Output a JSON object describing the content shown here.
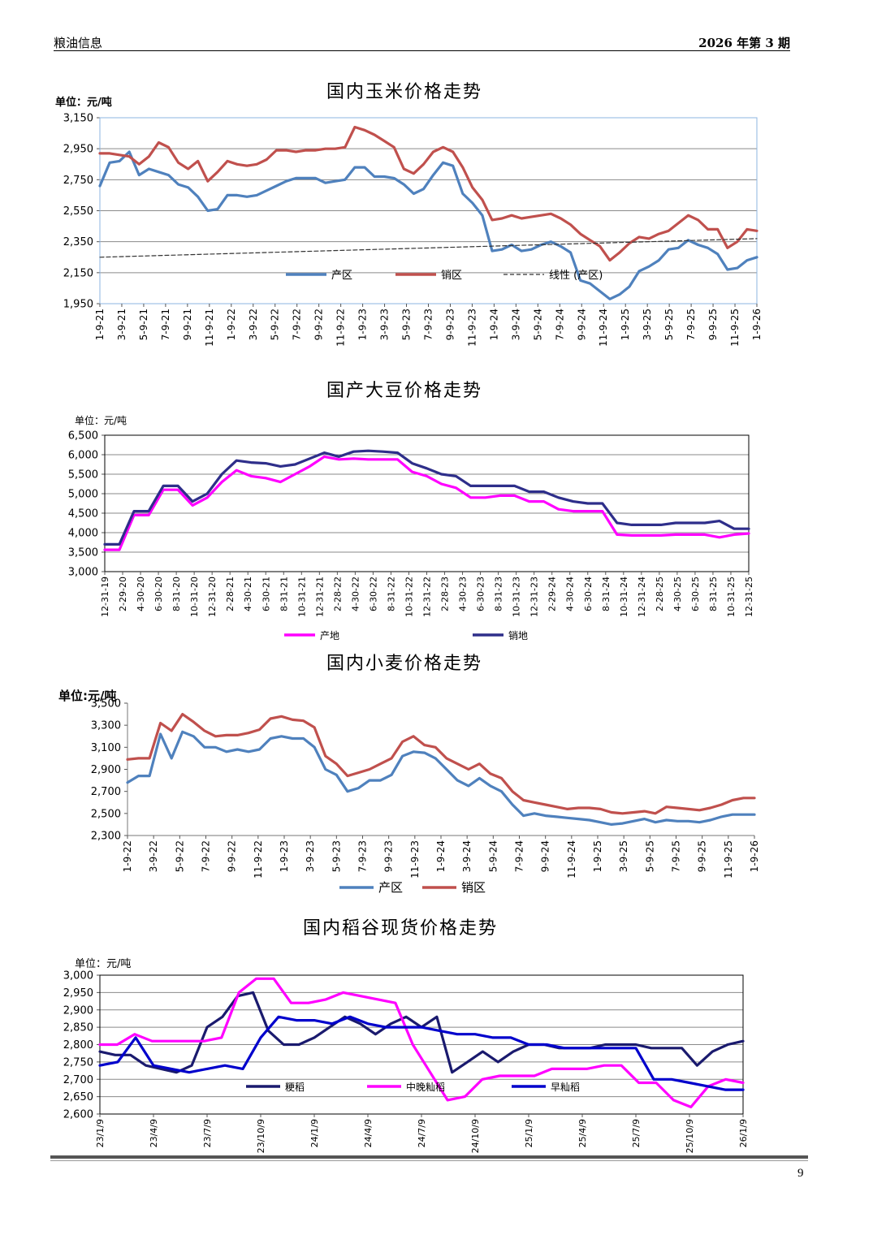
{
  "header": {
    "left": "粮油信息",
    "right": "2026 年第 3 期"
  },
  "footer": {
    "page_number": "9"
  },
  "chart_data": [
    {
      "type": "line",
      "title": "国内玉米价格走势",
      "unit_label": "单位：元/吨",
      "ylim": [
        1950,
        3150
      ],
      "yticks": [
        "3,150",
        "2,950",
        "2,750",
        "2,550",
        "2,350",
        "2,150",
        "1,950"
      ],
      "ytick_values": [
        3150,
        2950,
        2750,
        2550,
        2350,
        2150,
        1950
      ],
      "xticks": [
        "1-9-21",
        "3-9-21",
        "5-9-21",
        "7-9-21",
        "9-9-21",
        "11-9-21",
        "1-9-22",
        "3-9-22",
        "5-9-22",
        "7-9-22",
        "9-9-22",
        "11-9-22",
        "1-9-23",
        "3-9-23",
        "5-9-23",
        "7-9-23",
        "9-9-23",
        "11-9-23",
        "1-9-24",
        "3-9-24",
        "5-9-24",
        "7-9-24",
        "9-9-24",
        "11-9-24",
        "1-9-25",
        "3-9-25",
        "5-9-25",
        "7-9-25",
        "9-9-25",
        "11-9-25",
        "1-9-26"
      ],
      "grid": true,
      "legend_position": "bottom-inside",
      "series": [
        {
          "name": "产区",
          "color": "#4f81bd",
          "dash": false,
          "values": [
            2710,
            2860,
            2870,
            2930,
            2780,
            2820,
            2800,
            2780,
            2720,
            2700,
            2640,
            2550,
            2560,
            2650,
            2650,
            2640,
            2650,
            2680,
            2710,
            2740,
            2760,
            2760,
            2760,
            2730,
            2740,
            2750,
            2830,
            2830,
            2770,
            2770,
            2760,
            2720,
            2660,
            2690,
            2780,
            2860,
            2840,
            2660,
            2600,
            2520,
            2290,
            2300,
            2330,
            2290,
            2300,
            2330,
            2350,
            2320,
            2280,
            2100,
            2080,
            2030,
            1980,
            2010,
            2060,
            2160,
            2190,
            2230,
            2300,
            2310,
            2360,
            2330,
            2310,
            2270,
            2170,
            2180,
            2230,
            2250
          ]
        },
        {
          "name": "销区",
          "color": "#c0504d",
          "dash": false,
          "values": [
            2920,
            2920,
            2910,
            2900,
            2850,
            2900,
            2990,
            2960,
            2860,
            2820,
            2870,
            2740,
            2800,
            2870,
            2850,
            2840,
            2850,
            2880,
            2940,
            2940,
            2930,
            2940,
            2940,
            2950,
            2950,
            2960,
            3090,
            3070,
            3040,
            3000,
            2960,
            2820,
            2790,
            2850,
            2930,
            2960,
            2930,
            2830,
            2700,
            2620,
            2490,
            2500,
            2520,
            2500,
            2510,
            2520,
            2530,
            2500,
            2460,
            2400,
            2360,
            2320,
            2230,
            2280,
            2340,
            2380,
            2370,
            2400,
            2420,
            2470,
            2520,
            2490,
            2430,
            2430,
            2310,
            2350,
            2430,
            2420
          ]
        },
        {
          "name": "线性 (产区)",
          "color": "#333333",
          "dash": true,
          "values": [
            2250,
            2370
          ]
        }
      ]
    },
    {
      "type": "line",
      "title": "国产大豆价格走势",
      "unit_label": "单位：元/吨",
      "ylim": [
        3000,
        6500
      ],
      "yticks": [
        "6,500",
        "6,000",
        "5,500",
        "5,000",
        "4,500",
        "4,000",
        "3,500",
        "3,000"
      ],
      "ytick_values": [
        6500,
        6000,
        5500,
        5000,
        4500,
        4000,
        3500,
        3000
      ],
      "xticks": [
        "12-31-19",
        "2-29-20",
        "4-30-20",
        "6-30-20",
        "8-31-20",
        "10-31-20",
        "12-31-20",
        "2-28-21",
        "4-30-21",
        "6-30-21",
        "8-31-21",
        "10-31-21",
        "12-31-21",
        "2-28-22",
        "4-30-22",
        "6-30-22",
        "8-31-22",
        "10-31-22",
        "12-31-22",
        "2-28-23",
        "4-30-23",
        "6-30-23",
        "8-31-23",
        "10-31-23",
        "12-31-23",
        "2-29-24",
        "4-30-24",
        "6-30-24",
        "8-31-24",
        "10-31-24",
        "12-31-24",
        "2-28-25",
        "4-30-25",
        "6-30-25",
        "8-31-25",
        "10-31-25",
        "12-31-25"
      ],
      "grid": true,
      "legend_position": "bottom",
      "series": [
        {
          "name": "产地",
          "color": "#ff00ff",
          "dash": false,
          "values": [
            3560,
            3560,
            4450,
            4450,
            5100,
            5100,
            4700,
            4900,
            5300,
            5600,
            5450,
            5400,
            5300,
            5500,
            5700,
            5950,
            5880,
            5900,
            5880,
            5880,
            5880,
            5560,
            5450,
            5250,
            5150,
            4900,
            4900,
            4950,
            4950,
            4800,
            4800,
            4600,
            4550,
            4550,
            4550,
            3950,
            3930,
            3930,
            3930,
            3950,
            3950,
            3950,
            3880,
            3950,
            3980
          ]
        },
        {
          "name": "销地",
          "color": "#2e2e8a",
          "dash": false,
          "values": [
            3700,
            3700,
            4550,
            4550,
            5200,
            5200,
            4800,
            5000,
            5500,
            5850,
            5800,
            5780,
            5700,
            5750,
            5900,
            6050,
            5950,
            6080,
            6100,
            6080,
            6050,
            5780,
            5650,
            5500,
            5450,
            5200,
            5200,
            5200,
            5200,
            5050,
            5050,
            4900,
            4800,
            4750,
            4750,
            4250,
            4200,
            4200,
            4200,
            4250,
            4250,
            4250,
            4300,
            4100,
            4100
          ]
        }
      ]
    },
    {
      "type": "line",
      "title": "国内小麦价格走势",
      "unit_label": "单位:元/吨",
      "ylim": [
        2300,
        3500
      ],
      "yticks": [
        "3,500",
        "3,300",
        "3,100",
        "2,900",
        "2,700",
        "2,500",
        "2,300"
      ],
      "ytick_values": [
        3500,
        3300,
        3100,
        2900,
        2700,
        2500,
        2300
      ],
      "xticks": [
        "1-9-22",
        "3-9-22",
        "5-9-22",
        "7-9-22",
        "9-9-22",
        "11-9-22",
        "1-9-23",
        "3-9-23",
        "5-9-23",
        "7-9-23",
        "9-9-23",
        "11-9-23",
        "1-9-24",
        "3-9-24",
        "5-9-24",
        "7-9-24",
        "9-9-24",
        "11-9-24",
        "1-9-25",
        "3-9-25",
        "5-9-25",
        "7-9-25",
        "9-9-25",
        "11-9-25",
        "1-9-26"
      ],
      "grid": false,
      "legend_position": "bottom",
      "series": [
        {
          "name": "产区",
          "color": "#4f81bd",
          "dash": false,
          "values": [
            2780,
            2840,
            2840,
            3220,
            3000,
            3240,
            3200,
            3100,
            3100,
            3060,
            3080,
            3060,
            3080,
            3180,
            3200,
            3180,
            3180,
            3100,
            2900,
            2850,
            2700,
            2730,
            2800,
            2800,
            2850,
            3020,
            3060,
            3050,
            3000,
            2900,
            2800,
            2750,
            2820,
            2750,
            2700,
            2580,
            2480,
            2500,
            2480,
            2470,
            2460,
            2450,
            2440,
            2420,
            2400,
            2410,
            2430,
            2450,
            2420,
            2440,
            2430,
            2430,
            2420,
            2440,
            2470,
            2490,
            2490,
            2490
          ]
        },
        {
          "name": "销区",
          "color": "#c0504d",
          "dash": false,
          "values": [
            2990,
            3000,
            3000,
            3320,
            3250,
            3400,
            3330,
            3250,
            3200,
            3210,
            3210,
            3230,
            3260,
            3360,
            3380,
            3350,
            3340,
            3280,
            3020,
            2950,
            2840,
            2870,
            2900,
            2950,
            3000,
            3150,
            3200,
            3120,
            3100,
            3000,
            2950,
            2900,
            2950,
            2860,
            2820,
            2700,
            2620,
            2600,
            2580,
            2560,
            2540,
            2550,
            2550,
            2540,
            2510,
            2500,
            2510,
            2520,
            2500,
            2560,
            2550,
            2540,
            2530,
            2550,
            2580,
            2620,
            2640,
            2640
          ]
        }
      ]
    },
    {
      "type": "line",
      "title": "国内稻谷现货价格走势",
      "unit_label": "单位：元/吨",
      "ylim": [
        2600,
        3000
      ],
      "yticks": [
        "3,000",
        "2,950",
        "2,900",
        "2,850",
        "2,800",
        "2,750",
        "2,700",
        "2,650",
        "2,600"
      ],
      "ytick_values": [
        3000,
        2950,
        2900,
        2850,
        2800,
        2750,
        2700,
        2650,
        2600
      ],
      "xticks": [
        "23/1/9",
        "23/4/9",
        "23/7/9",
        "23/10/9",
        "24/1/9",
        "24/4/9",
        "24/7/9",
        "24/10/9",
        "25/1/9",
        "25/4/9",
        "25/7/9",
        "25/10/9",
        "26/1/9"
      ],
      "grid": true,
      "legend_position": "bottom-inside",
      "series": [
        {
          "name": "粳稻",
          "color": "#1a1a6e",
          "dash": false,
          "values": [
            2780,
            2770,
            2770,
            2740,
            2730,
            2720,
            2740,
            2850,
            2880,
            2940,
            2950,
            2840,
            2800,
            2800,
            2820,
            2850,
            2880,
            2860,
            2830,
            2860,
            2880,
            2850,
            2880,
            2720,
            2750,
            2780,
            2750,
            2780,
            2800,
            2800,
            2790,
            2790,
            2790,
            2800,
            2800,
            2800,
            2790,
            2790,
            2790,
            2740,
            2780,
            2800,
            2810
          ]
        },
        {
          "name": "中晚籼稻",
          "color": "#ff00ff",
          "dash": false,
          "values": [
            2800,
            2800,
            2830,
            2810,
            2810,
            2810,
            2810,
            2820,
            2950,
            2990,
            2990,
            2920,
            2920,
            2930,
            2950,
            2940,
            2930,
            2920,
            2800,
            2720,
            2640,
            2650,
            2700,
            2710,
            2710,
            2710,
            2730,
            2730,
            2730,
            2740,
            2740,
            2690,
            2690,
            2640,
            2620,
            2680,
            2700,
            2690
          ]
        },
        {
          "name": "早籼稻",
          "color": "#0000cc",
          "dash": false,
          "values": [
            2740,
            2750,
            2820,
            2740,
            2730,
            2720,
            2730,
            2740,
            2730,
            2820,
            2880,
            2870,
            2870,
            2860,
            2880,
            2860,
            2850,
            2850,
            2850,
            2840,
            2830,
            2830,
            2820,
            2820,
            2800,
            2800,
            2790,
            2790,
            2790,
            2790,
            2790,
            2700,
            2700,
            2690,
            2680,
            2670,
            2670
          ]
        }
      ]
    }
  ]
}
